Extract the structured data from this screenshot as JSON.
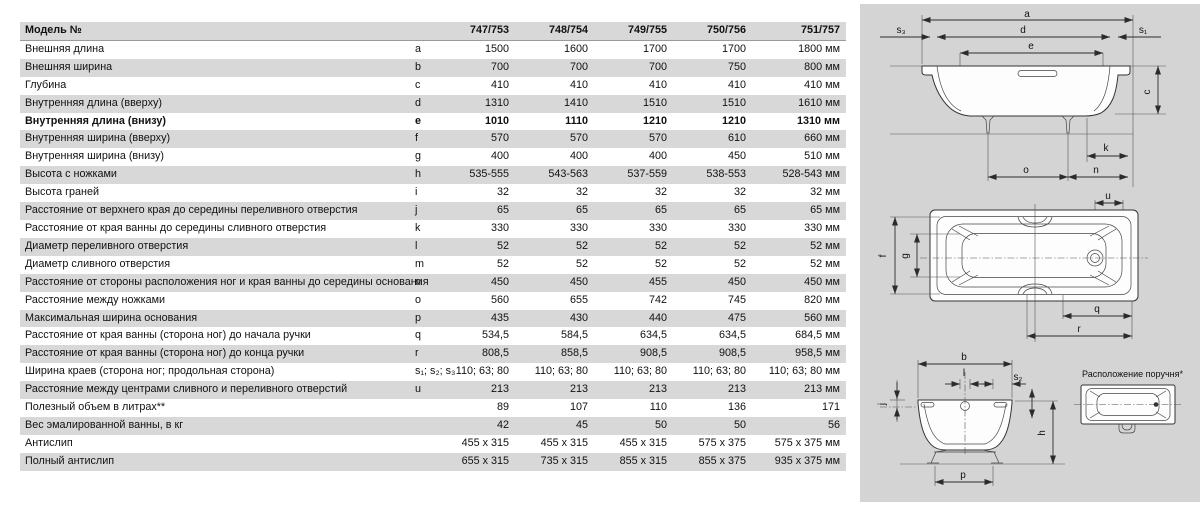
{
  "table": {
    "header": {
      "label": "Модель №",
      "models": [
        "747/753",
        "748/754",
        "749/755",
        "750/756",
        "751/757"
      ]
    },
    "rows": [
      {
        "label": "Внешняя длина",
        "letter": "a",
        "bold": false,
        "values": [
          "1500",
          "1600",
          "1700",
          "1700",
          "1800 мм"
        ]
      },
      {
        "label": "Внешняя ширина",
        "letter": "b",
        "bold": false,
        "values": [
          "700",
          "700",
          "700",
          "750",
          "800 мм"
        ]
      },
      {
        "label": "Глубина",
        "letter": "c",
        "bold": false,
        "values": [
          "410",
          "410",
          "410",
          "410",
          "410 мм"
        ]
      },
      {
        "label": "Внутренняя длина (вверху)",
        "letter": "d",
        "bold": false,
        "values": [
          "1310",
          "1410",
          "1510",
          "1510",
          "1610 мм"
        ]
      },
      {
        "label": "Внутренняя длина (внизу)",
        "letter": "e",
        "bold": true,
        "values": [
          "1010",
          "1110",
          "1210",
          "1210",
          "1310 мм"
        ]
      },
      {
        "label": "Внутренняя ширина (вверху)",
        "letter": "f",
        "bold": false,
        "values": [
          "570",
          "570",
          "570",
          "610",
          "660 мм"
        ]
      },
      {
        "label": "Внутренняя ширина (внизу)",
        "letter": "g",
        "bold": false,
        "values": [
          "400",
          "400",
          "400",
          "450",
          "510 мм"
        ]
      },
      {
        "label": "Высота с ножками",
        "letter": "h",
        "bold": false,
        "values": [
          "535-555",
          "543-563",
          "537-559",
          "538-553",
          "528-543 мм"
        ]
      },
      {
        "label": "Высота граней",
        "letter": "i",
        "bold": false,
        "values": [
          "32",
          "32",
          "32",
          "32",
          "32 мм"
        ]
      },
      {
        "label": "Расстояние от верхнего края до середины переливного отверстия",
        "letter": "j",
        "bold": false,
        "values": [
          "65",
          "65",
          "65",
          "65",
          "65 мм"
        ]
      },
      {
        "label": "Расстояние от края ванны до середины сливного отверстия",
        "letter": "k",
        "bold": false,
        "values": [
          "330",
          "330",
          "330",
          "330",
          "330 мм"
        ]
      },
      {
        "label": "Диаметр переливного отверстия",
        "letter": "l",
        "bold": false,
        "values": [
          "52",
          "52",
          "52",
          "52",
          "52 мм"
        ]
      },
      {
        "label": "Диаметр сливного отверстия",
        "letter": "m",
        "bold": false,
        "values": [
          "52",
          "52",
          "52",
          "52",
          "52 мм"
        ]
      },
      {
        "label": "Расстояние от стороны расположения ног и края ванны до середины основания",
        "letter": "n",
        "bold": false,
        "values": [
          "450",
          "450",
          "455",
          "450",
          "450 мм"
        ]
      },
      {
        "label": "Расстояние между ножками",
        "letter": "o",
        "bold": false,
        "values": [
          "560",
          "655",
          "742",
          "745",
          "820 мм"
        ]
      },
      {
        "label": "Максимальная ширина основания",
        "letter": "p",
        "bold": false,
        "values": [
          "435",
          "430",
          "440",
          "475",
          "560 мм"
        ]
      },
      {
        "label": "Расстояние от края ванны (сторона ног) до начала ручки",
        "letter": "q",
        "bold": false,
        "values": [
          "534,5",
          "584,5",
          "634,5",
          "634,5",
          "684,5 мм"
        ]
      },
      {
        "label": "Расстояние от края ванны (сторона ног) до конца ручки",
        "letter": "r",
        "bold": false,
        "values": [
          "808,5",
          "858,5",
          "908,5",
          "908,5",
          "958,5 мм"
        ]
      },
      {
        "label": "Ширина краев (сторона ног; продольная сторона)",
        "letter": "s₁; s₂; s₃",
        "bold": false,
        "values": [
          "110; 63; 80",
          "110; 63; 80",
          "110; 63; 80",
          "110; 63; 80",
          "110; 63; 80 мм"
        ]
      },
      {
        "label": "Расстояние между центрами сливного и переливного отверстий",
        "letter": "u",
        "bold": false,
        "values": [
          "213",
          "213",
          "213",
          "213",
          "213 мм"
        ]
      },
      {
        "label": "Полезный объем в литрах**",
        "letter": "",
        "bold": false,
        "values": [
          "89",
          "107",
          "110",
          "136",
          "171"
        ]
      },
      {
        "label": "Вес эмалированной ванны, в кг",
        "letter": "",
        "bold": false,
        "values": [
          "42",
          "45",
          "50",
          "50",
          "56"
        ]
      },
      {
        "label": "Антислип",
        "letter": "",
        "bold": false,
        "values": [
          "455 x 315",
          "455 x 315",
          "455 x 315",
          "575 x 375",
          "575 x 375 мм"
        ]
      },
      {
        "label": "Полный антислип",
        "letter": "",
        "bold": false,
        "values": [
          "655 x 315",
          "735 x 315",
          "855 x 315",
          "855 x 375",
          "935 x 375 мм"
        ]
      }
    ]
  },
  "diagrams": {
    "side_view": {
      "a": "a",
      "s3": "s₃",
      "d": "d",
      "s1": "s₁",
      "e": "e",
      "c": "c",
      "k": "k",
      "o": "o",
      "n": "n"
    },
    "top_view": {
      "u": "u",
      "f": "f",
      "g": "g",
      "q": "q",
      "r": "r"
    },
    "end_view": {
      "b": "b",
      "l": "l",
      "s2": "s₂",
      "j": "j",
      "h": "h",
      "p": "p"
    },
    "handle_view": {
      "caption": "Расположение поручня*"
    }
  },
  "colors": {
    "row_stripe": "#d8d8d8",
    "panel_bg": "#d4d4d4",
    "text": "#111111"
  }
}
